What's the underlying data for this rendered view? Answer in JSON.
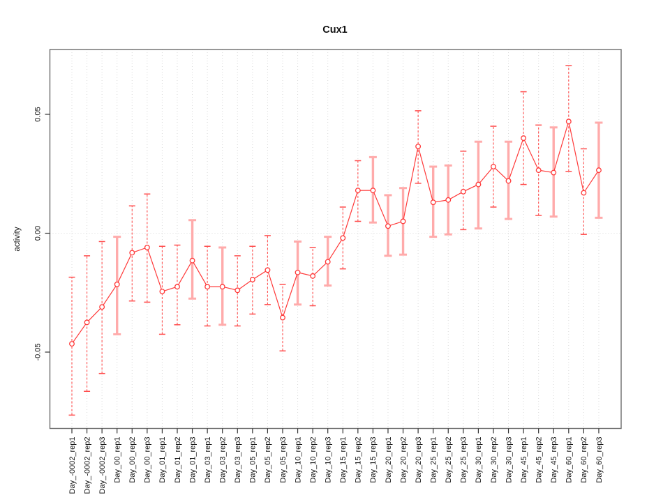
{
  "chart_data": {
    "type": "line",
    "title": "Cux1",
    "xlabel": "",
    "ylabel": "activity",
    "legend_position": "none",
    "grid": "dotted vertical gridline at every x position; dotted horizontal line at y=0",
    "ylim": [
      -0.082,
      0.077
    ],
    "yticks": [
      0.05,
      0.0,
      -0.05
    ],
    "ytick_labels": [
      "0.05",
      "0.00",
      "-0.05"
    ],
    "colors": {
      "series": "#ff3939",
      "error_bar_pale": "#ffabab",
      "error_bar_dashed": "#ff4d4d",
      "grid": "#d8d8d8",
      "box": "#6b6b6b",
      "tick": "#333333"
    },
    "categories": [
      "Day_-0002_rep1",
      "Day_-0002_rep2",
      "Day_-0002_rep3",
      "Day_00_rep1",
      "Day_00_rep2",
      "Day_00_rep3",
      "Day_01_rep1",
      "Day_01_rep2",
      "Day_01_rep3",
      "Day_03_rep1",
      "Day_03_rep2",
      "Day_03_rep3",
      "Day_05_rep1",
      "Day_05_rep2",
      "Day_05_rep3",
      "Day_10_rep1",
      "Day_10_rep2",
      "Day_10_rep3",
      "Day_15_rep1",
      "Day_15_rep2",
      "Day_15_rep3",
      "Day_20_rep1",
      "Day_20_rep2",
      "Day_20_rep3",
      "Day_25_rep1",
      "Day_25_rep2",
      "Day_25_rep3",
      "Day_30_rep1",
      "Day_30_rep2",
      "Day_30_rep3",
      "Day_45_rep1",
      "Day_45_rep2",
      "Day_45_rep3",
      "Day_60_rep1",
      "Day_60_rep2",
      "Day_60_rep3"
    ],
    "values": [
      -0.0465,
      -0.0375,
      -0.031,
      -0.0215,
      -0.0082,
      -0.006,
      -0.0245,
      -0.0225,
      -0.0115,
      -0.0225,
      -0.0225,
      -0.024,
      -0.0195,
      -0.0155,
      -0.0355,
      -0.0165,
      -0.018,
      -0.012,
      -0.002,
      0.018,
      0.018,
      0.003,
      0.005,
      0.0365,
      0.013,
      0.014,
      0.0175,
      0.0205,
      0.028,
      0.022,
      0.04,
      0.0265,
      0.0255,
      0.047,
      0.017,
      0.0265
    ],
    "err_low": [
      -0.0765,
      -0.0665,
      -0.059,
      -0.0425,
      -0.0285,
      -0.029,
      -0.0425,
      -0.0385,
      -0.0275,
      -0.039,
      -0.0385,
      -0.039,
      -0.034,
      -0.03,
      -0.0495,
      -0.03,
      -0.0305,
      -0.022,
      -0.015,
      0.005,
      0.0045,
      -0.0095,
      -0.009,
      0.021,
      -0.0015,
      -0.0005,
      0.0015,
      0.002,
      0.011,
      0.006,
      0.0205,
      0.0075,
      0.007,
      0.026,
      -0.0005,
      0.0065
    ],
    "err_high": [
      -0.0185,
      -0.0095,
      -0.0035,
      -0.0015,
      0.0115,
      0.0165,
      -0.0055,
      -0.005,
      0.0055,
      -0.0055,
      -0.006,
      -0.0095,
      -0.0055,
      -0.001,
      -0.0215,
      -0.0035,
      -0.006,
      -0.0015,
      0.011,
      0.0305,
      0.032,
      0.016,
      0.019,
      0.0515,
      0.028,
      0.0285,
      0.0345,
      0.0385,
      0.045,
      0.0385,
      0.0595,
      0.0455,
      0.0445,
      0.0705,
      0.0355,
      0.0465
    ],
    "error_bar_styles": [
      "dashed",
      "dashed",
      "dashed",
      "pale",
      "dashed",
      "dashed",
      "dashed",
      "dashed",
      "pale",
      "dashed",
      "pale",
      "dashed",
      "dashed",
      "dashed",
      "dashed",
      "pale",
      "dashed",
      "pale",
      "dashed",
      "dashed",
      "pale",
      "pale",
      "pale",
      "dashed",
      "pale",
      "pale",
      "dashed",
      "pale",
      "dashed",
      "pale",
      "dashed",
      "dashed",
      "pale",
      "dashed",
      "dashed",
      "pale"
    ]
  }
}
